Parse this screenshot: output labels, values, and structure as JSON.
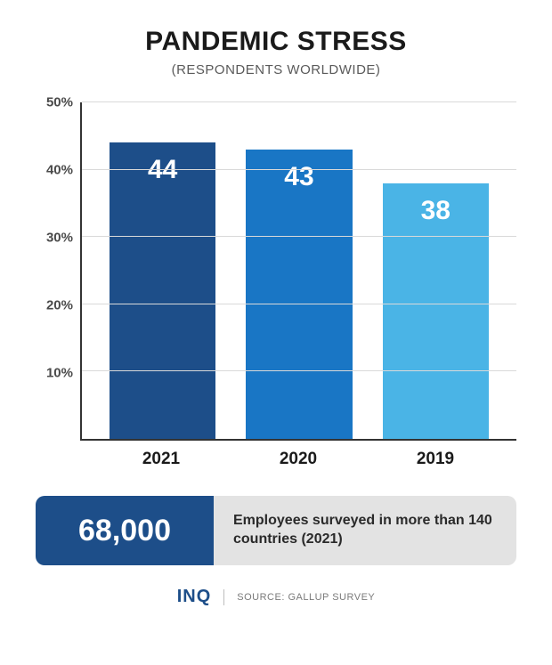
{
  "title": "PANDEMIC STRESS",
  "title_fontsize": 30,
  "subtitle": "(RESPONDENTS WORLDWIDE)",
  "subtitle_fontsize": 15,
  "chart": {
    "type": "bar",
    "categories": [
      "2021",
      "2020",
      "2019"
    ],
    "values": [
      44,
      43,
      38
    ],
    "bar_colors": [
      "#1d4e89",
      "#1976c5",
      "#4ab4e6"
    ],
    "value_label_color": "#ffffff",
    "value_label_fontsize": 30,
    "ylim": [
      0,
      50
    ],
    "yticks": [
      10,
      20,
      30,
      40,
      50
    ],
    "ytick_suffix": "%",
    "ytick_fontsize": 15,
    "xlabel_fontsize": 19,
    "axis_color": "#333333",
    "grid_color": "#d9d9d9",
    "background_color": "#ffffff",
    "bar_width_ratio": 0.26
  },
  "callout": {
    "number": "68,000",
    "number_fontsize": 34,
    "number_bg": "#1d4e89",
    "text": "Employees surveyed in more than 140 countries (2021)",
    "text_fontsize": 16,
    "text_bg": "#e3e3e3"
  },
  "footer": {
    "logo_text": "INQ",
    "logo_color": "#1d4e89",
    "logo_fontsize": 20,
    "source_label": "SOURCE: GALLUP SURVEY",
    "source_fontsize": 11
  }
}
